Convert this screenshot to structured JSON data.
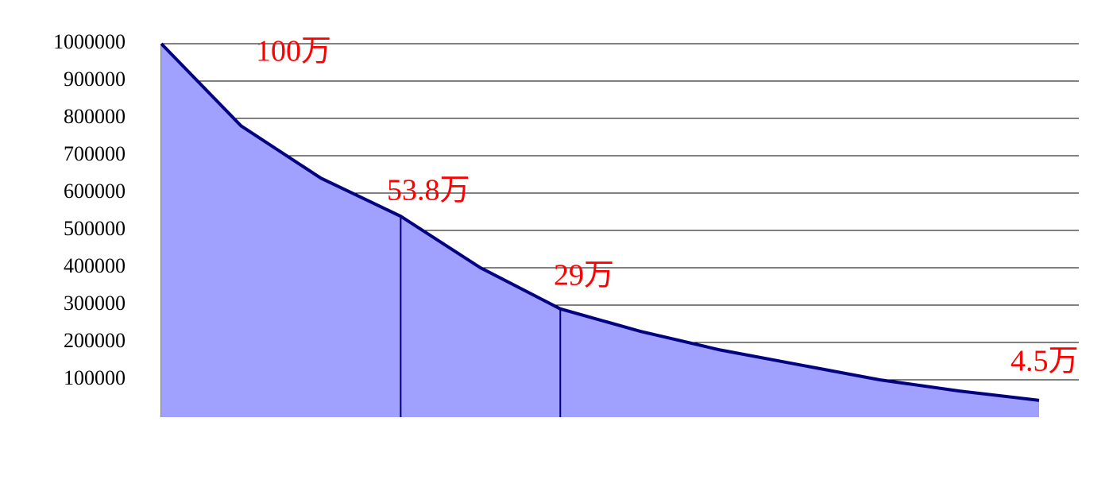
{
  "chart_data": {
    "type": "area",
    "categories": [
      null,
      null,
      null,
      null,
      null,
      null,
      null,
      null,
      null,
      null,
      null,
      null
    ],
    "values": [
      1000000,
      780000,
      640000,
      538000,
      400000,
      290000,
      230000,
      180000,
      140000,
      100000,
      70000,
      45000
    ],
    "fill": "#a0a0ff",
    "line_color": "#000080",
    "ylim": [
      0,
      1000000
    ],
    "yticks": [
      100000,
      200000,
      300000,
      400000,
      500000,
      600000,
      700000,
      800000,
      900000,
      1000000
    ],
    "grid": true,
    "annotations": [
      "100万",
      "53.8万",
      "29万",
      "4.5万"
    ]
  }
}
